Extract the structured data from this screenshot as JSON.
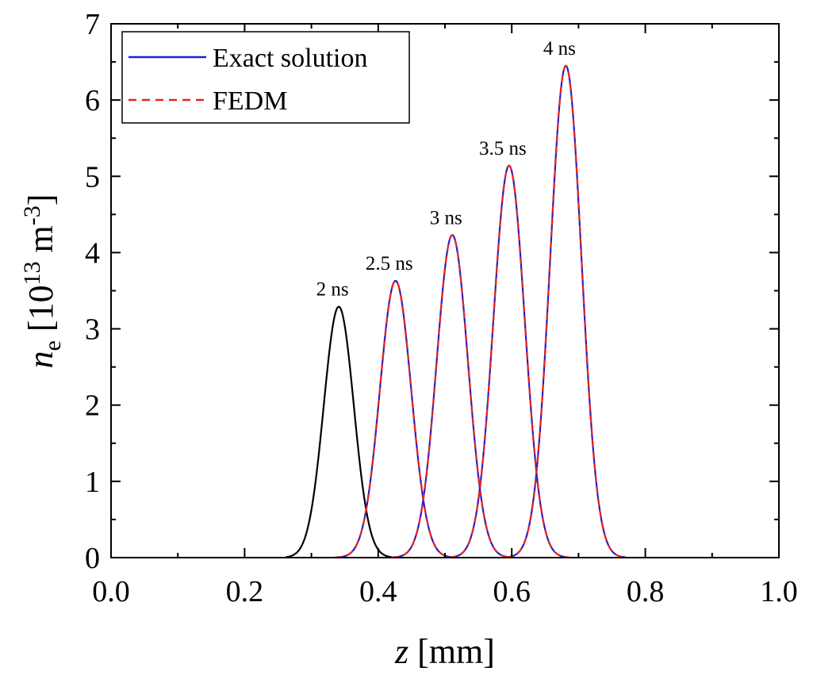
{
  "chart_data": {
    "type": "line",
    "title": "",
    "xlabel": {
      "var": "z",
      "unit": "[mm]"
    },
    "ylabel": {
      "var": "n",
      "sub": "e",
      "unit_open": "[10",
      "sup1": "13",
      "unit_mid": " m",
      "sup2": "-3",
      "unit_close": "]"
    },
    "xlim": [
      0.0,
      1.0
    ],
    "ylim": [
      0,
      7
    ],
    "xticks": [
      0.0,
      0.2,
      0.4,
      0.6,
      0.8,
      1.0
    ],
    "xtick_labels": [
      "0.0",
      "0.2",
      "0.4",
      "0.6",
      "0.8",
      "1.0"
    ],
    "yticks": [
      0,
      1,
      2,
      3,
      4,
      5,
      6,
      7
    ],
    "ytick_labels": [
      "0",
      "1",
      "2",
      "3",
      "4",
      "5",
      "6",
      "7"
    ],
    "grid": false,
    "legend_position": "top-left",
    "legend": [
      {
        "label": "Exact solution",
        "color": "#1f1fd6",
        "style": "solid"
      },
      {
        "label": "FEDM",
        "color": "#e8231f",
        "style": "dashed"
      }
    ],
    "series": [
      {
        "time_label": "2 ns",
        "center": 0.341,
        "peak": 3.29,
        "sigma": 0.0225,
        "exact_color": "#000000",
        "show_fedm": false,
        "range": [
          0.262,
          0.42
        ]
      },
      {
        "time_label": "2.5 ns",
        "center": 0.426,
        "peak": 3.63,
        "sigma": 0.0235,
        "exact_color": "#1f1fd6",
        "show_fedm": true,
        "range": [
          0.336,
          0.516
        ]
      },
      {
        "time_label": "3 ns",
        "center": 0.511,
        "peak": 4.23,
        "sigma": 0.0235,
        "exact_color": "#1f1fd6",
        "show_fedm": true,
        "range": [
          0.421,
          0.601
        ]
      },
      {
        "time_label": "3.5 ns",
        "center": 0.596,
        "peak": 5.14,
        "sigma": 0.0235,
        "exact_color": "#1f1fd6",
        "show_fedm": true,
        "range": [
          0.506,
          0.686
        ]
      },
      {
        "time_label": "4 ns",
        "center": 0.681,
        "peak": 6.45,
        "sigma": 0.0235,
        "exact_color": "#1f1fd6",
        "show_fedm": true,
        "range": [
          0.591,
          0.771
        ]
      }
    ],
    "fedm_color": "#e8231f"
  }
}
